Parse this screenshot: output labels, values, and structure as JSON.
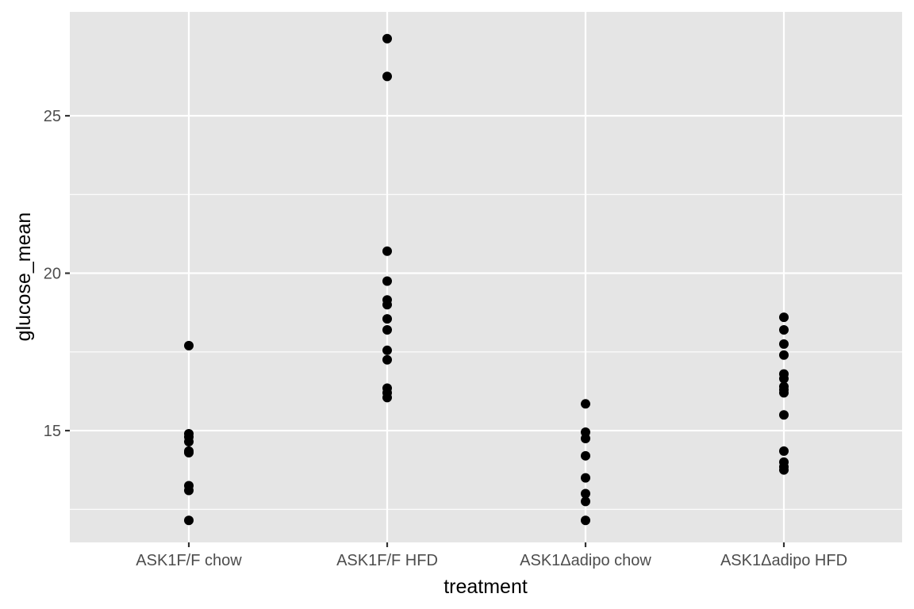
{
  "chart_data": {
    "type": "scatter",
    "xlabel": "treatment",
    "ylabel": "glucose_mean",
    "categories": [
      "ASK1F/F chow",
      "ASK1F/F HFD",
      "ASK1Δadipo chow",
      "ASK1Δadipo HFD"
    ],
    "y_ticks": [
      15,
      20,
      25
    ],
    "y_tick_labels": [
      "15",
      "20",
      "25"
    ],
    "ylim": [
      11.45,
      28.3
    ],
    "grid": true,
    "legend": "none",
    "series": [
      {
        "category": "ASK1F/F chow",
        "values": [
          17.7,
          14.9,
          14.8,
          14.65,
          14.35,
          14.3,
          13.25,
          13.1,
          12.15
        ]
      },
      {
        "category": "ASK1F/F HFD",
        "values": [
          27.45,
          26.25,
          20.7,
          19.75,
          19.15,
          19.0,
          18.55,
          18.2,
          17.55,
          17.25,
          16.35,
          16.2,
          16.05
        ]
      },
      {
        "category": "ASK1Δadipo chow",
        "values": [
          15.85,
          14.95,
          14.75,
          14.2,
          13.5,
          13.0,
          12.75,
          12.15
        ]
      },
      {
        "category": "ASK1Δadipo HFD",
        "values": [
          18.6,
          18.2,
          17.75,
          17.4,
          16.8,
          16.65,
          16.4,
          16.3,
          16.2,
          15.5,
          14.35,
          14.0,
          13.85,
          13.75
        ]
      }
    ],
    "colors": {
      "panel_background": "#e5e5e5",
      "grid_line": "#ffffff",
      "point": "#000000",
      "tick_text": "#4d4d4d",
      "tick_mark": "#333333"
    }
  }
}
